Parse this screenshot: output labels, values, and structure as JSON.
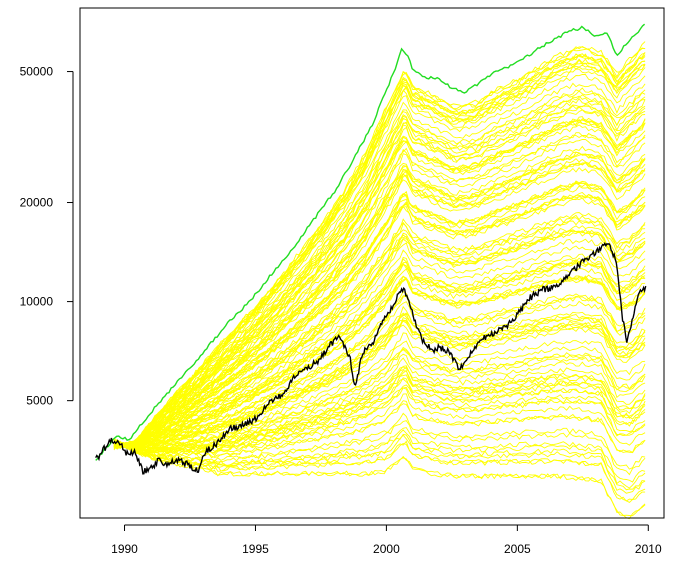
{
  "chart_data": {
    "type": "line",
    "title": "",
    "xlabel": "",
    "ylabel": "",
    "y_scale": "log",
    "xlim": [
      1988.3,
      2010.6
    ],
    "ylim": [
      2200,
      78000
    ],
    "grid": false,
    "legend": "none",
    "x_ticks": [
      {
        "value": 1990,
        "label": "1990"
      },
      {
        "value": 1995,
        "label": "1995"
      },
      {
        "value": 2000,
        "label": "2000"
      },
      {
        "value": 2005,
        "label": "2005"
      },
      {
        "value": 2010,
        "label": "2010"
      }
    ],
    "y_ticks": [
      {
        "value": 5000,
        "label": "5000"
      },
      {
        "value": 10000,
        "label": "10000"
      },
      {
        "value": 20000,
        "label": "20000"
      },
      {
        "value": 50000,
        "label": "50000"
      }
    ],
    "colors": {
      "upper_envelope": "#22dd22",
      "simulations": "#ffff00",
      "index": "#000000"
    },
    "series": [
      {
        "role": "upper_envelope",
        "x": [
          1988.9,
          1989.3,
          1989.7,
          1990.2,
          1990.6,
          1991.0,
          1991.5,
          1992.0,
          1992.5,
          1993.0,
          1993.5,
          1994.0,
          1994.5,
          1995.0,
          1995.5,
          1996.0,
          1996.5,
          1997.0,
          1997.5,
          1998.0,
          1998.5,
          1999.0,
          1999.5,
          2000.0,
          2000.3,
          2000.6,
          2000.8,
          2001.0,
          2001.5,
          2002.0,
          2002.5,
          2003.0,
          2003.5,
          2004.0,
          2004.5,
          2005.0,
          2005.5,
          2006.0,
          2006.5,
          2007.0,
          2007.5,
          2008.0,
          2008.4,
          2008.8,
          2009.1,
          2009.5,
          2009.9
        ],
        "y": [
          3300,
          3600,
          3900,
          3800,
          4200,
          4600,
          5100,
          5700,
          6300,
          7000,
          7800,
          8700,
          9500,
          10500,
          11800,
          13200,
          14800,
          16800,
          19000,
          21500,
          25000,
          29500,
          35000,
          44000,
          50000,
          59000,
          56000,
          51000,
          48000,
          47500,
          44500,
          43000,
          46000,
          49000,
          51000,
          53500,
          56500,
          60000,
          63000,
          66500,
          68000,
          64000,
          66000,
          56000,
          60000,
          65000,
          69500
        ]
      },
      {
        "role": "simulations",
        "x": [
          1989.6,
          1990.4,
          1991.2,
          1992.0,
          1992.8,
          1993.6,
          1994.4,
          1995.2,
          1996.0,
          1996.8,
          1997.6,
          1998.4,
          1999.2,
          2000.0,
          2000.7,
          2001.0,
          2001.8,
          2002.6,
          2003.4,
          2004.2,
          2005.0,
          2005.8,
          2006.6,
          2007.4,
          2008.2,
          2008.8,
          2009.3,
          2009.9
        ],
        "y": [
          3800,
          3500,
          3300,
          3200,
          3100,
          3000,
          3000,
          3000,
          3000,
          3000,
          3000,
          3000,
          3000,
          3050,
          3400,
          3100,
          3000,
          2950,
          2950,
          2950,
          2950,
          2950,
          2950,
          2900,
          2850,
          2300,
          2200,
          2400
        ],
        "count": 120
      },
      {
        "role": "index",
        "x": [
          1988.9,
          1989.2,
          1989.5,
          1989.8,
          1990.1,
          1990.4,
          1990.7,
          1991.0,
          1991.3,
          1991.6,
          1992.0,
          1992.4,
          1992.8,
          1993.1,
          1993.5,
          1994.0,
          1994.5,
          1995.0,
          1995.5,
          1996.0,
          1996.5,
          1997.0,
          1997.4,
          1997.8,
          1998.2,
          1998.6,
          1998.8,
          1999.1,
          1999.5,
          1999.8,
          2000.2,
          2000.6,
          2000.8,
          2001.1,
          2001.4,
          2001.8,
          2002.0,
          2002.4,
          2002.8,
          2003.1,
          2003.5,
          2004.0,
          2004.5,
          2005.0,
          2005.5,
          2006.0,
          2006.4,
          2006.8,
          2007.2,
          2007.6,
          2008.0,
          2008.5,
          2008.8,
          2009.0,
          2009.2,
          2009.4,
          2009.7,
          2009.9
        ],
        "y": [
          3300,
          3550,
          3800,
          3700,
          3450,
          3500,
          3050,
          3100,
          3300,
          3200,
          3300,
          3200,
          3050,
          3500,
          3700,
          4100,
          4200,
          4400,
          4900,
          5200,
          5900,
          6300,
          6600,
          7300,
          7900,
          6800,
          5500,
          7000,
          7500,
          8500,
          9500,
          11000,
          10500,
          8600,
          7600,
          7000,
          7300,
          7000,
          6200,
          6700,
          7500,
          8000,
          8300,
          9100,
          10300,
          10900,
          11000,
          11700,
          12500,
          13500,
          14200,
          15000,
          13000,
          9000,
          7500,
          9000,
          10800,
          11000
        ]
      }
    ]
  }
}
